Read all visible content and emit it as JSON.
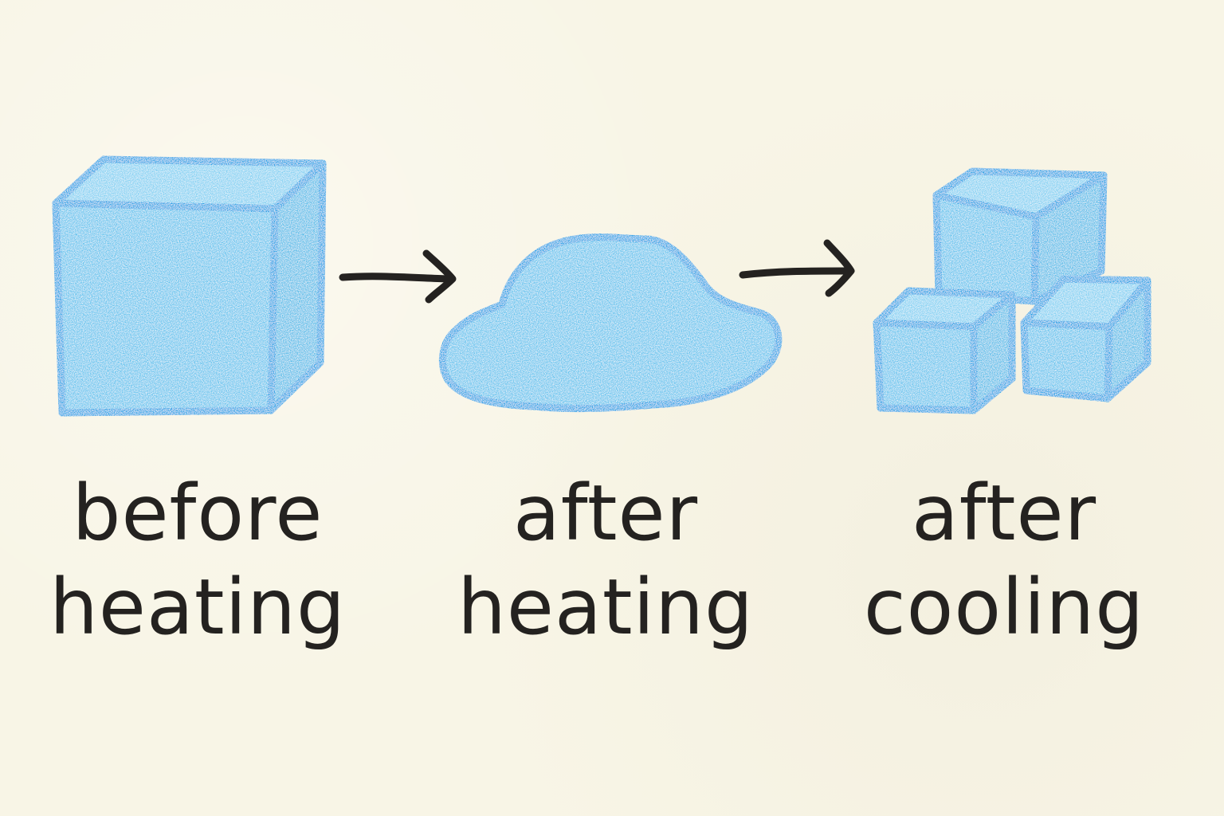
{
  "stages": [
    {
      "line1": "before",
      "line2": "heating"
    },
    {
      "line1": "after",
      "line2": "heating"
    },
    {
      "line1": "after",
      "line2": "cooling"
    }
  ],
  "colors": {
    "background": "#f8f5e6",
    "crayon_blue_fill": "#5cc3ee",
    "crayon_blue_stroke": "#1aa3e6",
    "ink": "#242220"
  }
}
